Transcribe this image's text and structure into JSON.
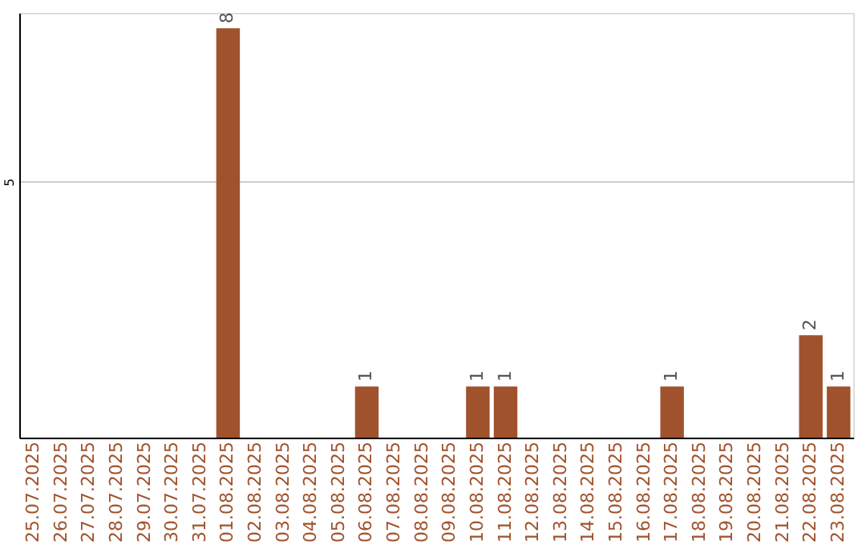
{
  "chart_data": {
    "type": "bar",
    "categories": [
      "25.07.2025",
      "26.07.2025",
      "27.07.2025",
      "28.07.2025",
      "29.07.2025",
      "30.07.2025",
      "31.07.2025",
      "01.08.2025",
      "02.08.2025",
      "03.08.2025",
      "04.08.2025",
      "05.08.2025",
      "06.08.2025",
      "07.08.2025",
      "08.08.2025",
      "09.08.2025",
      "10.08.2025",
      "11.08.2025",
      "12.08.2025",
      "13.08.2025",
      "14.08.2025",
      "15.08.2025",
      "16.08.2025",
      "17.08.2025",
      "18.08.2025",
      "19.08.2025",
      "20.08.2025",
      "21.08.2025",
      "22.08.2025",
      "23.08.2025"
    ],
    "values": [
      0,
      0,
      0,
      0,
      0,
      0,
      0,
      8,
      0,
      0,
      0,
      0,
      1,
      0,
      0,
      0,
      1,
      1,
      0,
      0,
      0,
      0,
      0,
      1,
      0,
      0,
      0,
      0,
      2,
      1
    ],
    "value_labels": [
      null,
      null,
      null,
      null,
      null,
      null,
      null,
      "8",
      null,
      null,
      null,
      null,
      "1",
      null,
      null,
      null,
      "1",
      "1",
      null,
      null,
      null,
      null,
      null,
      "1",
      null,
      null,
      null,
      null,
      "2",
      "1"
    ],
    "color": "#a0522d",
    "ylim": [
      0,
      8.3
    ],
    "yticks": [
      {
        "value": 0,
        "label": null
      },
      5
    ],
    "grid": "y"
  }
}
